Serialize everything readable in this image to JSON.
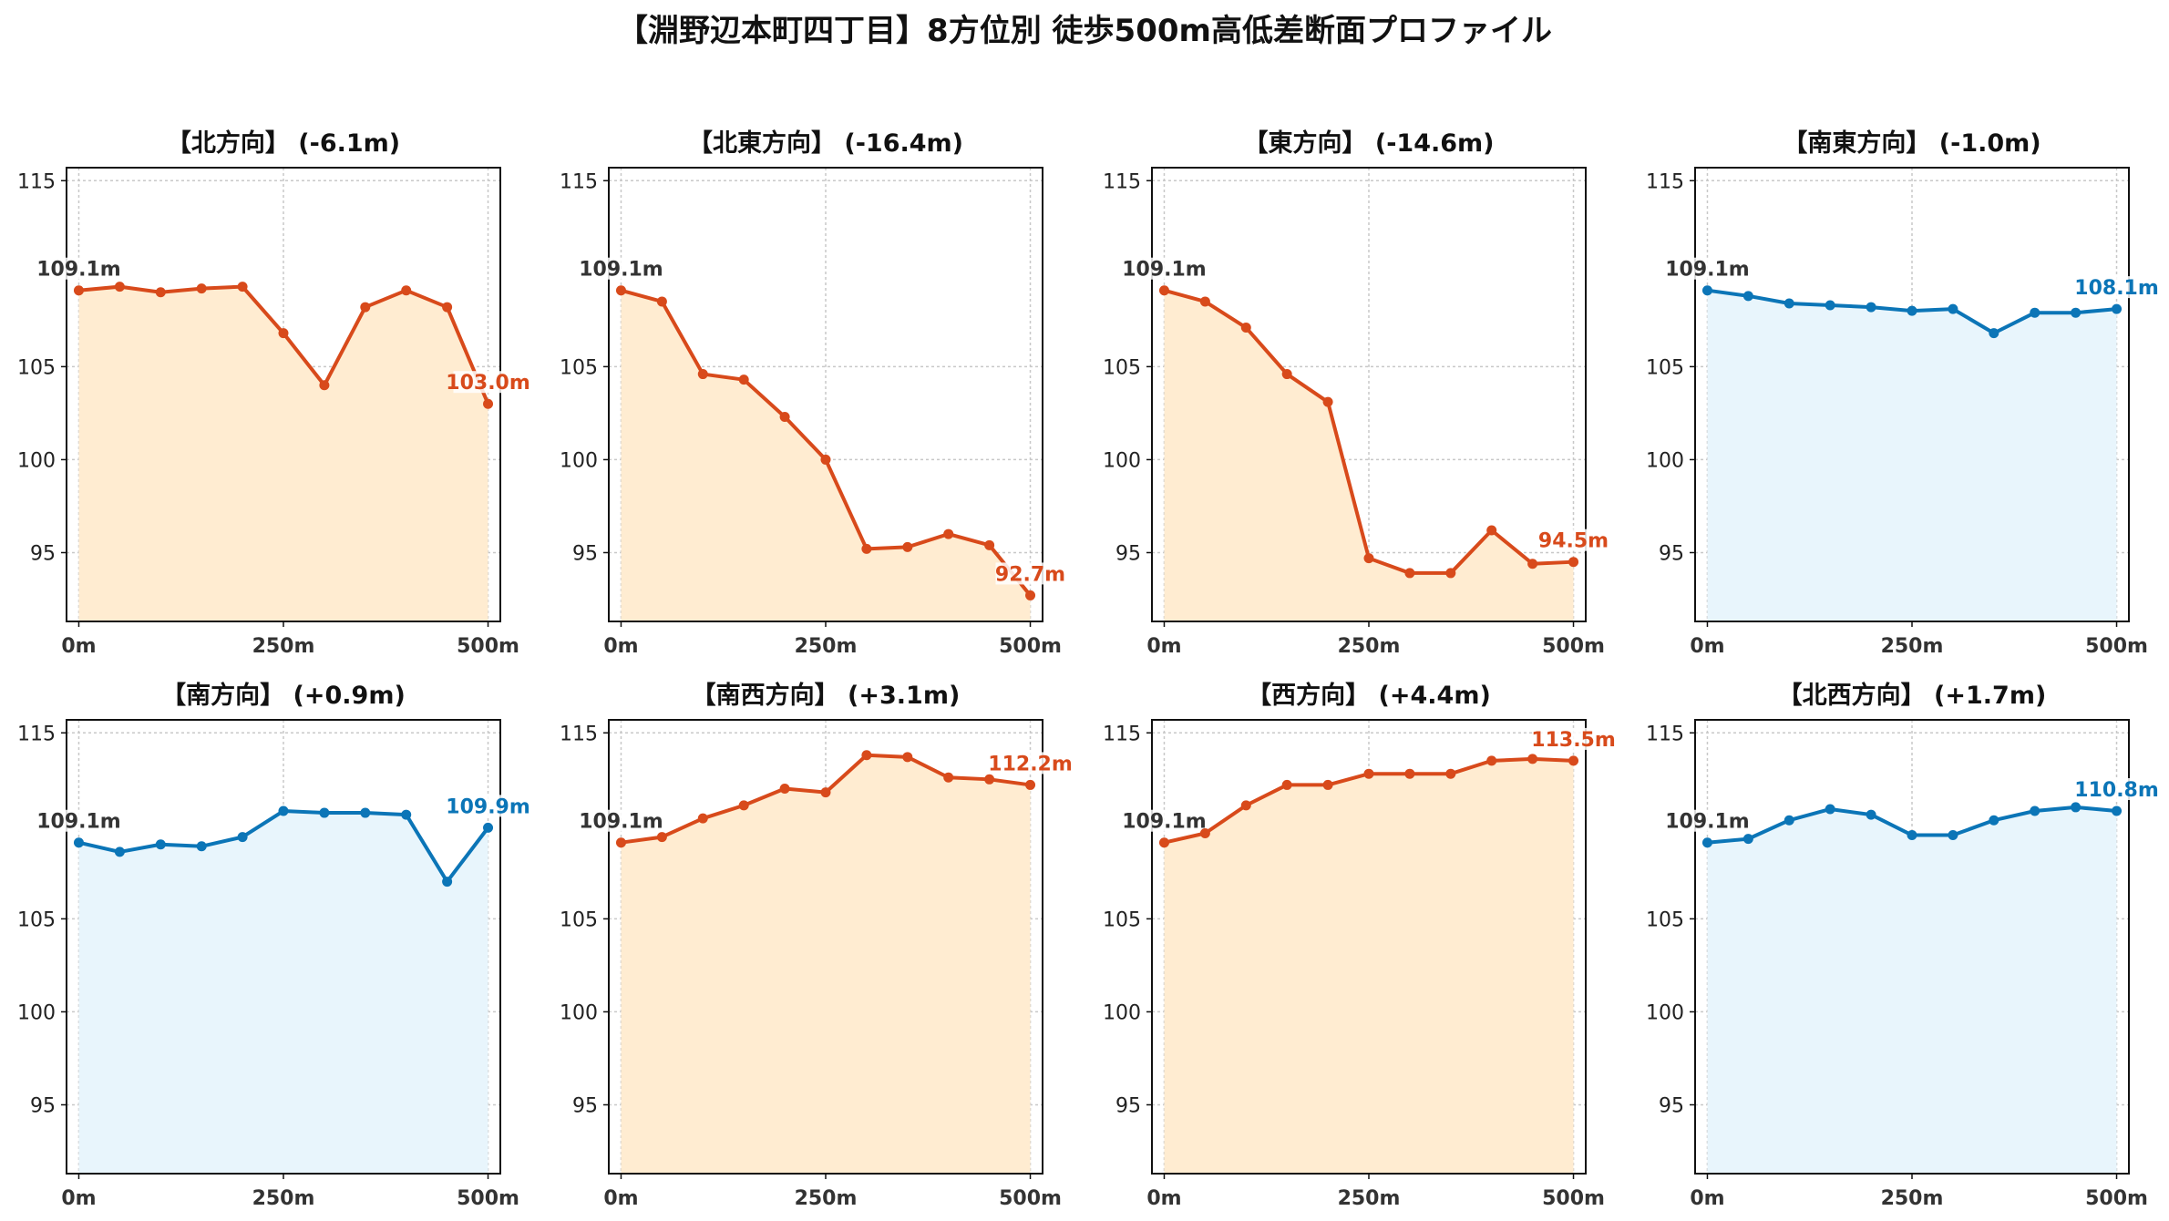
{
  "title": "【淵野辺本町四丁目】8方位別 徒歩500m高低差断面プロファイル",
  "colors": {
    "down_line": "#d84a1b",
    "down_fill": "#ffecd1",
    "up_line": "#0b75b7",
    "up_fill": "#e8f5fc",
    "start_label": "#333333",
    "grid": "#c8c8c8",
    "axis": "#111111"
  },
  "chart_data": [
    {
      "type": "area",
      "title": "【北方向】 (-6.1m)",
      "x": [
        0,
        50,
        100,
        150,
        200,
        250,
        300,
        350,
        400,
        450,
        500
      ],
      "values": [
        109.1,
        109.3,
        109.0,
        109.2,
        109.3,
        106.8,
        104.0,
        108.2,
        109.1,
        108.2,
        103.0
      ],
      "xticks": [
        0,
        250,
        500
      ],
      "xtick_labels": [
        "0m",
        "250m",
        "500m"
      ],
      "yticks": [
        95,
        100,
        105,
        115
      ],
      "ylim": [
        91.3,
        115.7
      ],
      "xlim": [
        -15,
        515
      ],
      "grid": true,
      "color_scheme": "down",
      "start_label": "109.1m",
      "end_label": "103.0m"
    },
    {
      "type": "area",
      "title": "【北東方向】 (-16.4m)",
      "x": [
        0,
        50,
        100,
        150,
        200,
        250,
        300,
        350,
        400,
        450,
        500
      ],
      "values": [
        109.1,
        108.5,
        104.6,
        104.3,
        102.3,
        100.0,
        95.2,
        95.3,
        96.0,
        95.4,
        92.7
      ],
      "xticks": [
        0,
        250,
        500
      ],
      "xtick_labels": [
        "0m",
        "250m",
        "500m"
      ],
      "yticks": [
        95,
        100,
        105,
        115
      ],
      "ylim": [
        91.3,
        115.7
      ],
      "xlim": [
        -15,
        515
      ],
      "grid": true,
      "color_scheme": "down",
      "start_label": "109.1m",
      "end_label": "92.7m"
    },
    {
      "type": "area",
      "title": "【東方向】 (-14.6m)",
      "x": [
        0,
        50,
        100,
        150,
        200,
        250,
        300,
        350,
        400,
        450,
        500
      ],
      "values": [
        109.1,
        108.5,
        107.1,
        104.6,
        103.1,
        94.7,
        93.9,
        93.9,
        96.2,
        94.4,
        94.5
      ],
      "xticks": [
        0,
        250,
        500
      ],
      "xtick_labels": [
        "0m",
        "250m",
        "500m"
      ],
      "yticks": [
        95,
        100,
        105,
        115
      ],
      "ylim": [
        91.3,
        115.7
      ],
      "xlim": [
        -15,
        515
      ],
      "grid": true,
      "color_scheme": "down",
      "start_label": "109.1m",
      "end_label": "94.5m"
    },
    {
      "type": "area",
      "title": "【南東方向】 (-1.0m)",
      "x": [
        0,
        50,
        100,
        150,
        200,
        250,
        300,
        350,
        400,
        450,
        500
      ],
      "values": [
        109.1,
        108.8,
        108.4,
        108.3,
        108.2,
        108.0,
        108.1,
        106.8,
        107.9,
        107.9,
        108.1
      ],
      "xticks": [
        0,
        250,
        500
      ],
      "xtick_labels": [
        "0m",
        "250m",
        "500m"
      ],
      "yticks": [
        95,
        100,
        105,
        115
      ],
      "ylim": [
        91.3,
        115.7
      ],
      "xlim": [
        -15,
        515
      ],
      "grid": true,
      "color_scheme": "up",
      "start_label": "109.1m",
      "end_label": "108.1m"
    },
    {
      "type": "area",
      "title": "【南方向】 (+0.9m)",
      "x": [
        0,
        50,
        100,
        150,
        200,
        250,
        300,
        350,
        400,
        450,
        500
      ],
      "values": [
        109.1,
        108.6,
        109.0,
        108.9,
        109.4,
        110.8,
        110.7,
        110.7,
        110.6,
        107.0,
        109.9
      ],
      "xticks": [
        0,
        250,
        500
      ],
      "xtick_labels": [
        "0m",
        "250m",
        "500m"
      ],
      "yticks": [
        95,
        100,
        105,
        115
      ],
      "ylim": [
        91.3,
        115.7
      ],
      "xlim": [
        -15,
        515
      ],
      "grid": true,
      "color_scheme": "up",
      "start_label": "109.1m",
      "end_label": "109.9m"
    },
    {
      "type": "area",
      "title": "【南西方向】 (+3.1m)",
      "x": [
        0,
        50,
        100,
        150,
        200,
        250,
        300,
        350,
        400,
        450,
        500
      ],
      "values": [
        109.1,
        109.4,
        110.4,
        111.1,
        112.0,
        111.8,
        113.8,
        113.7,
        112.6,
        112.5,
        112.2
      ],
      "xticks": [
        0,
        250,
        500
      ],
      "xtick_labels": [
        "0m",
        "250m",
        "500m"
      ],
      "yticks": [
        95,
        100,
        105,
        115
      ],
      "ylim": [
        91.3,
        115.7
      ],
      "xlim": [
        -15,
        515
      ],
      "grid": true,
      "color_scheme": "down",
      "start_label": "109.1m",
      "end_label": "112.2m"
    },
    {
      "type": "area",
      "title": "【西方向】 (+4.4m)",
      "x": [
        0,
        50,
        100,
        150,
        200,
        250,
        300,
        350,
        400,
        450,
        500
      ],
      "values": [
        109.1,
        109.6,
        111.1,
        112.2,
        112.2,
        112.8,
        112.8,
        112.8,
        113.5,
        113.6,
        113.5
      ],
      "xticks": [
        0,
        250,
        500
      ],
      "xtick_labels": [
        "0m",
        "250m",
        "500m"
      ],
      "yticks": [
        95,
        100,
        105,
        115
      ],
      "ylim": [
        91.3,
        115.7
      ],
      "xlim": [
        -15,
        515
      ],
      "grid": true,
      "color_scheme": "down",
      "start_label": "109.1m",
      "end_label": "113.5m"
    },
    {
      "type": "area",
      "title": "【北西方向】 (+1.7m)",
      "x": [
        0,
        50,
        100,
        150,
        200,
        250,
        300,
        350,
        400,
        450,
        500
      ],
      "values": [
        109.1,
        109.3,
        110.3,
        110.9,
        110.6,
        109.5,
        109.5,
        110.3,
        110.8,
        111.0,
        110.8
      ],
      "xticks": [
        0,
        250,
        500
      ],
      "xtick_labels": [
        "0m",
        "250m",
        "500m"
      ],
      "yticks": [
        95,
        100,
        105,
        115
      ],
      "ylim": [
        91.3,
        115.7
      ],
      "xlim": [
        -15,
        515
      ],
      "grid": true,
      "color_scheme": "up",
      "start_label": "109.1m",
      "end_label": "110.8m"
    }
  ]
}
